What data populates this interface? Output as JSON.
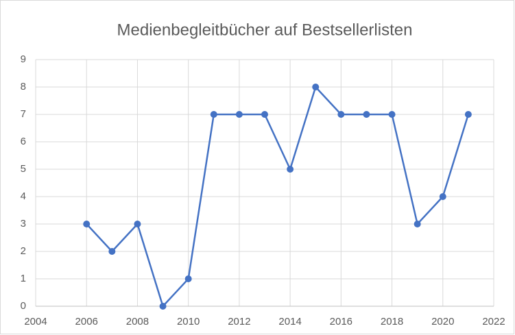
{
  "chart_data": {
    "type": "line",
    "title": "Medienbegleitbücher auf Bestsellerlisten",
    "x": [
      2006,
      2007,
      2008,
      2009,
      2010,
      2011,
      2012,
      2013,
      2014,
      2015,
      2016,
      2017,
      2018,
      2019,
      2020,
      2021
    ],
    "series": [
      {
        "name": "Medienbegleitbücher",
        "color": "#4472c4",
        "values": [
          3,
          2,
          3,
          0,
          1,
          7,
          7,
          7,
          5,
          8,
          7,
          7,
          7,
          3,
          4,
          7
        ]
      }
    ],
    "xlim": [
      2004,
      2022
    ],
    "xticks": [
      2004,
      2006,
      2008,
      2010,
      2012,
      2014,
      2016,
      2018,
      2020,
      2022
    ],
    "ylim": [
      0,
      9
    ],
    "yticks": [
      0,
      1,
      2,
      3,
      4,
      5,
      6,
      7,
      8,
      9
    ],
    "grid": true
  }
}
